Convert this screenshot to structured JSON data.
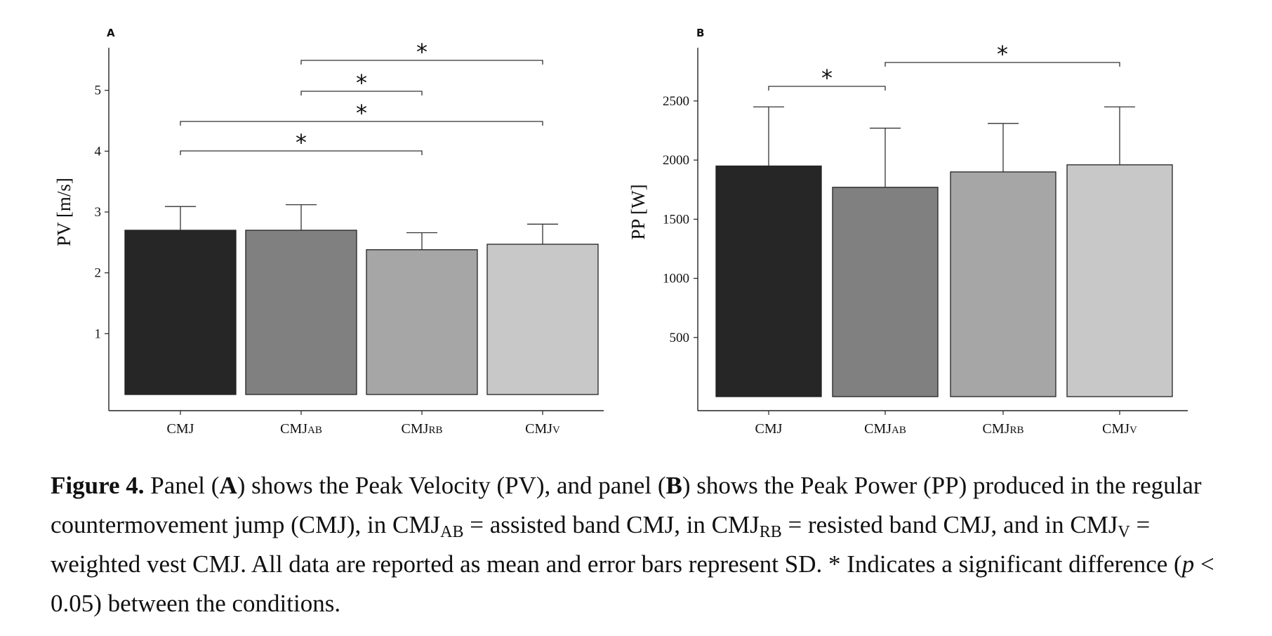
{
  "chart_data": [
    {
      "type": "bar",
      "panel": "A",
      "title": "",
      "xlabel": "",
      "ylabel": "PV [m/s]",
      "categories": [
        {
          "base": "CMJ",
          "sub": ""
        },
        {
          "base": "CMJ",
          "sub": "AB"
        },
        {
          "base": "CMJ",
          "sub": "RB"
        },
        {
          "base": "CMJ",
          "sub": "V"
        }
      ],
      "values": [
        2.7,
        2.7,
        2.38,
        2.47
      ],
      "errors": [
        0.39,
        0.42,
        0.28,
        0.33
      ],
      "colors": [
        "#262626",
        "#808080",
        "#a6a6a6",
        "#c8c8c8"
      ],
      "ylim": [
        0,
        5.7
      ],
      "yticks": [
        1,
        2,
        3,
        4,
        5
      ],
      "significance": [
        {
          "from": 1,
          "to": 3,
          "label": "*"
        },
        {
          "from": 1,
          "to": 2,
          "label": "*"
        },
        {
          "from": 0,
          "to": 3,
          "label": "*"
        },
        {
          "from": 0,
          "to": 2,
          "label": "*"
        }
      ]
    },
    {
      "type": "bar",
      "panel": "B",
      "title": "",
      "xlabel": "",
      "ylabel": "PP [W]",
      "categories": [
        {
          "base": "CMJ",
          "sub": ""
        },
        {
          "base": "CMJ",
          "sub": "AB"
        },
        {
          "base": "CMJ",
          "sub": "RB"
        },
        {
          "base": "CMJ",
          "sub": "V"
        }
      ],
      "values": [
        1950,
        1770,
        1900,
        1960
      ],
      "errors": [
        500,
        500,
        410,
        490
      ],
      "colors": [
        "#262626",
        "#808080",
        "#a6a6a6",
        "#c8c8c8"
      ],
      "ylim": [
        0,
        2950
      ],
      "yticks": [
        500,
        1000,
        1500,
        2000,
        2500
      ],
      "significance": [
        {
          "from": 1,
          "to": 3,
          "label": "*"
        },
        {
          "from": 0,
          "to": 1,
          "label": "*"
        }
      ]
    }
  ],
  "caption": {
    "figure_label": "Figure 4.",
    "p1": " Panel (",
    "panelA": "A",
    "p2": ") shows the Peak Velocity (PV), and panel (",
    "panelB": "B",
    "p3": ") shows the Peak Power (PP) produced in the regular countermovement jump (CMJ), in CMJ",
    "sub1": "AB",
    "p4": " = assisted band CMJ, in CMJ",
    "sub2": "RB",
    "p5": " = resisted band CMJ, and in CMJ",
    "sub3": "V",
    "p6": " = weighted vest CMJ. All data are reported as mean and error bars represent SD. * Indicates a significant difference (",
    "p_italic": "p",
    "p7": " < 0.05) between the conditions."
  }
}
